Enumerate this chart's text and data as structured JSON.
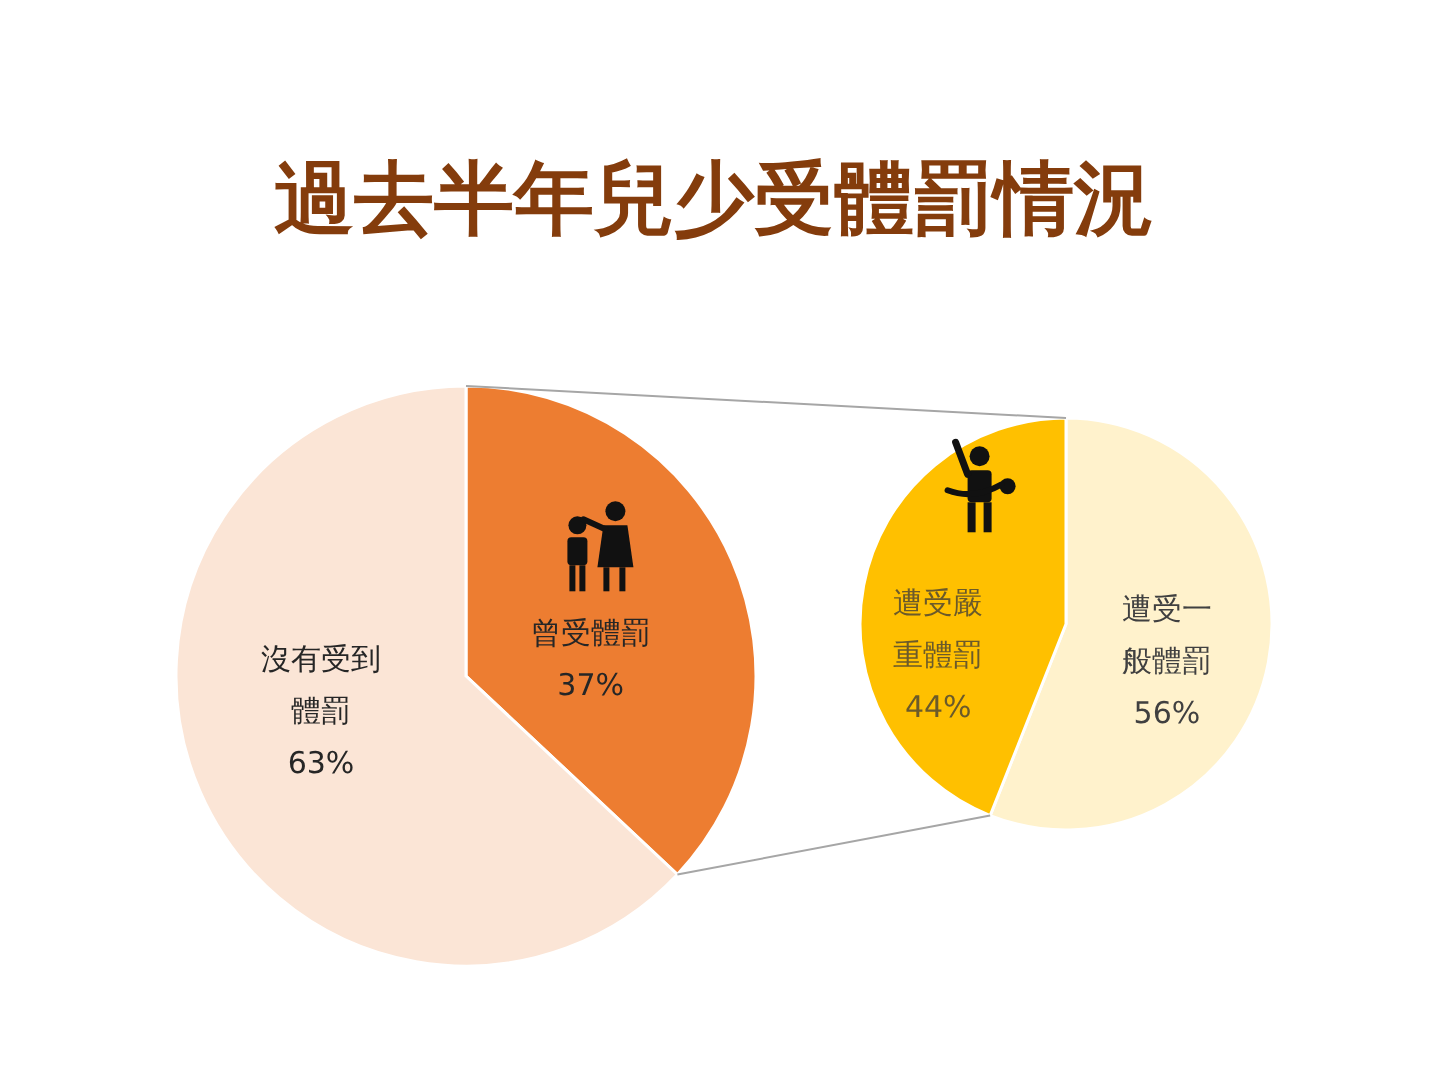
{
  "chart_data": [
    {
      "type": "pie",
      "title": "過去半年兒少受體罰情況",
      "categories": [
        "曾受體罰",
        "沒有受到體罰"
      ],
      "values": [
        37,
        63
      ],
      "colors": [
        "#ed7d31",
        "#fbe5d6"
      ],
      "value_labels": [
        "37%",
        "63%"
      ]
    },
    {
      "type": "pie",
      "categories": [
        "遭受一般體罰",
        "遭受嚴重體罰"
      ],
      "values": [
        56,
        44
      ],
      "colors": [
        "#fff2cc",
        "#ffc000"
      ],
      "value_labels": [
        "56%",
        "44%"
      ]
    }
  ]
}
